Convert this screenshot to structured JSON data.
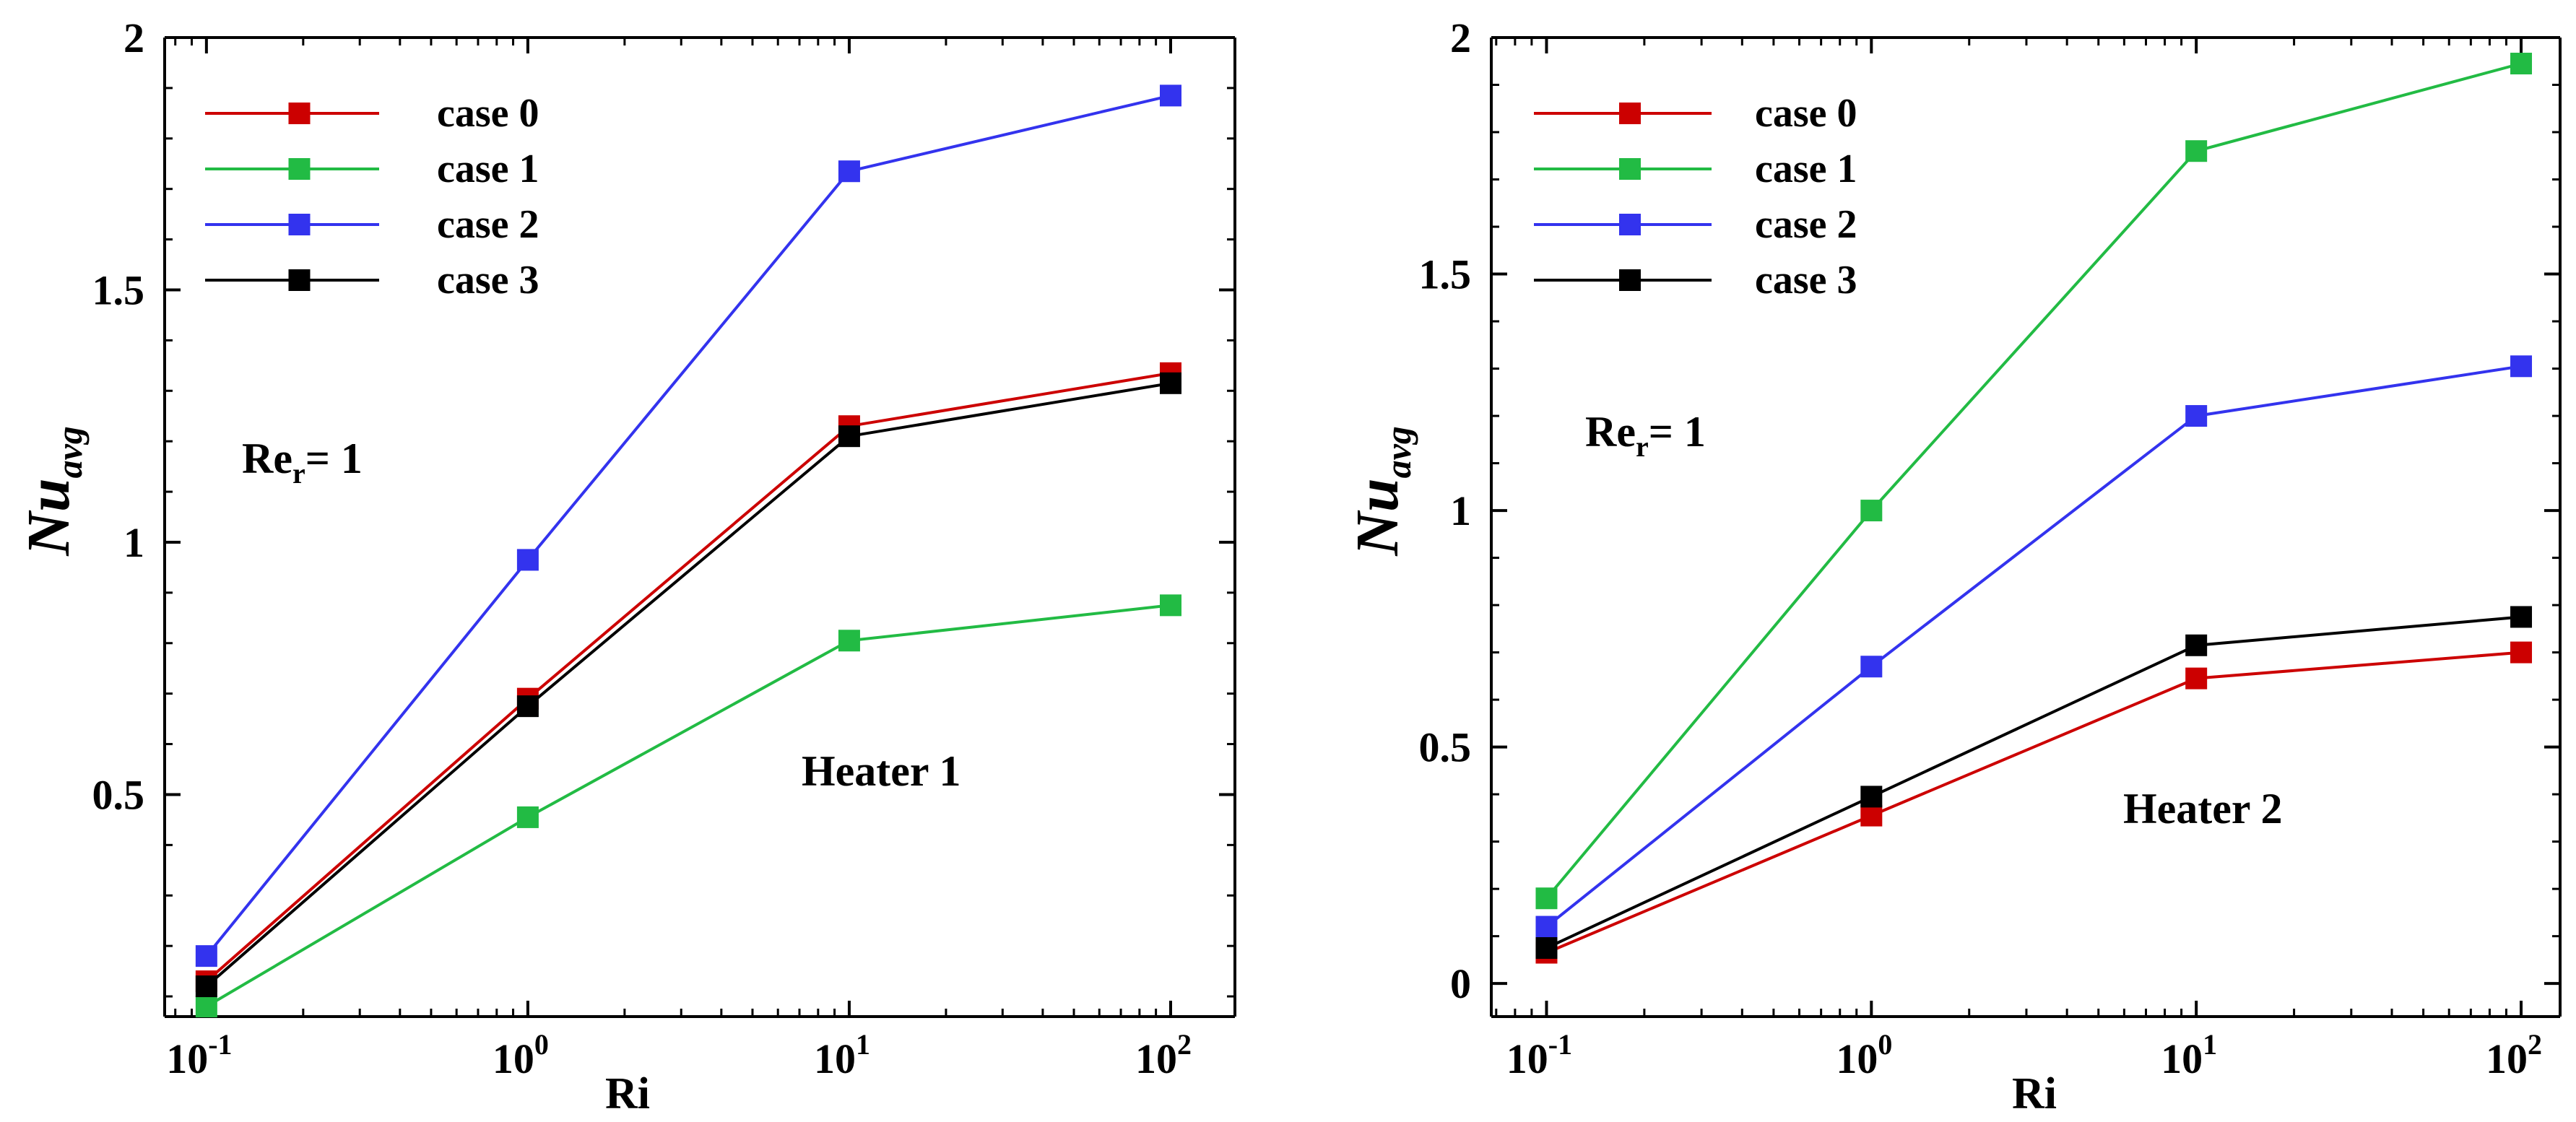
{
  "chart_data": [
    {
      "type": "line",
      "x_scale": "log",
      "xlabel": "Ri",
      "ylabel_main": "Nu",
      "ylabel_sub": "avg",
      "x_ticks": [
        {
          "base": "10",
          "exp": "-1",
          "value": 0.1
        },
        {
          "base": "10",
          "exp": "0",
          "value": 1
        },
        {
          "base": "10",
          "exp": "1",
          "value": 10
        },
        {
          "base": "10",
          "exp": "2",
          "value": 100
        }
      ],
      "y_ticks": [
        "0.5",
        "1",
        "1.5",
        "2"
      ],
      "y_tick_values": [
        0.5,
        1,
        1.5,
        2
      ],
      "ylim": [
        0.06,
        2.0
      ],
      "xlim_log": [
        -1.13,
        2.2
      ],
      "x": [
        0.1,
        1,
        10,
        100
      ],
      "series": [
        {
          "name": "case 0",
          "color": "#cc0000",
          "values": [
            0.13,
            0.69,
            1.23,
            1.335
          ]
        },
        {
          "name": "case 1",
          "color": "#22bb44",
          "values": [
            0.08,
            0.455,
            0.805,
            0.875
          ]
        },
        {
          "name": "case 2",
          "color": "#3333ee",
          "values": [
            0.18,
            0.965,
            1.735,
            1.885
          ]
        },
        {
          "name": "case 3",
          "color": "#000000",
          "values": [
            0.12,
            0.675,
            1.21,
            1.315
          ]
        }
      ],
      "annotation_re": {
        "main": "Re",
        "sub": "r",
        "rest": "= 1"
      },
      "annotation_heater": "Heater 1"
    },
    {
      "type": "line",
      "x_scale": "log",
      "xlabel": "Ri",
      "ylabel_main": "Nu",
      "ylabel_sub": "avg",
      "x_ticks": [
        {
          "base": "10",
          "exp": "-1",
          "value": 0.1
        },
        {
          "base": "10",
          "exp": "0",
          "value": 1
        },
        {
          "base": "10",
          "exp": "1",
          "value": 10
        },
        {
          "base": "10",
          "exp": "2",
          "value": 100
        }
      ],
      "y_ticks": [
        "0",
        "0.5",
        "1",
        "1.5",
        "2"
      ],
      "y_tick_values": [
        0,
        0.5,
        1,
        1.5,
        2
      ],
      "ylim": [
        -0.07,
        2.0
      ],
      "xlim_log": [
        -1.17,
        2.12
      ],
      "x": [
        0.1,
        1,
        10,
        100
      ],
      "series": [
        {
          "name": "case 0",
          "color": "#cc0000",
          "values": [
            0.065,
            0.355,
            0.645,
            0.7
          ]
        },
        {
          "name": "case 1",
          "color": "#22bb44",
          "values": [
            0.18,
            1.0,
            1.76,
            1.945
          ]
        },
        {
          "name": "case 2",
          "color": "#3333ee",
          "values": [
            0.12,
            0.67,
            1.2,
            1.305
          ]
        },
        {
          "name": "case 3",
          "color": "#000000",
          "values": [
            0.075,
            0.395,
            0.715,
            0.775
          ]
        }
      ],
      "annotation_re": {
        "main": "Re",
        "sub": "r",
        "rest": "= 1"
      },
      "annotation_heater": "Heater 2"
    }
  ]
}
